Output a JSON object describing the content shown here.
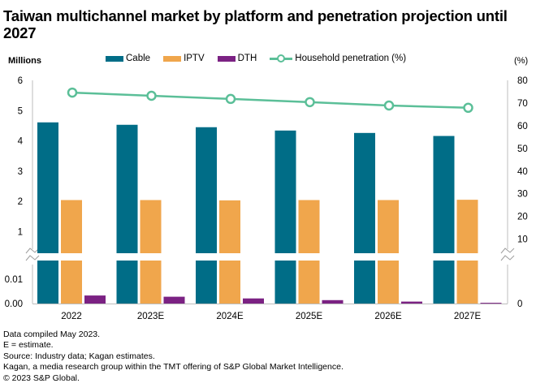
{
  "chart_data": {
    "type": "bar",
    "title": "Taiwan multichannel market by platform and penetration projection until 2027",
    "xlabel": "",
    "ylabel": "Millions",
    "y2label": "(%)",
    "categories": [
      "2022",
      "2023E",
      "2024E",
      "2025E",
      "2026E",
      "2027E"
    ],
    "series": [
      {
        "name": "Cable",
        "type": "bar",
        "axis": "left",
        "color": "#006d87",
        "values": [
          4.61,
          4.53,
          4.45,
          4.34,
          4.26,
          4.16
        ]
      },
      {
        "name": "IPTV",
        "type": "bar",
        "axis": "left",
        "color": "#f0a64c",
        "values": [
          2.04,
          2.04,
          2.03,
          2.04,
          2.04,
          2.05
        ]
      },
      {
        "name": "DTH",
        "type": "bar",
        "axis": "left",
        "color": "#7b2283",
        "values": [
          0.0033,
          0.0028,
          0.0021,
          0.0014,
          0.0008,
          0.0003
        ]
      },
      {
        "name": "Household penetration (%)",
        "type": "line",
        "axis": "right",
        "color": "#5bbf98",
        "values": [
          74.6,
          73.2,
          71.8,
          70.4,
          68.9,
          67.9
        ]
      }
    ],
    "y_axis_upper": {
      "range": [
        0,
        6
      ],
      "ticks": [
        "1",
        "2",
        "3",
        "4",
        "5",
        "6"
      ],
      "tick_values": [
        1,
        2,
        3,
        4,
        5,
        6
      ]
    },
    "y_axis_lower": {
      "range": [
        0,
        0.015
      ],
      "ticks": [
        "0.00",
        "0.01"
      ],
      "tick_values": [
        0,
        0.01
      ]
    },
    "y2_axis": {
      "range": [
        0,
        80
      ],
      "ticks": [
        "10",
        "20",
        "30",
        "40",
        "50",
        "60",
        "70",
        "80"
      ],
      "tick_values": [
        10,
        20,
        30,
        40,
        50,
        60,
        70,
        80
      ],
      "lower_tick": "0"
    },
    "axis_break": true,
    "grid": false,
    "legend_position": "top"
  },
  "legend": {
    "items": [
      "Cable",
      "IPTV",
      "DTH",
      "Household penetration (%)"
    ]
  },
  "footer": {
    "lines": [
      "Data compiled May 2023.",
      "E = estimate.",
      "Source: Industry data; Kagan estimates.",
      "Kagan, a media research group within the TMT offering of S&P Global Market Intelligence.",
      "© 2023 S&P Global."
    ]
  }
}
